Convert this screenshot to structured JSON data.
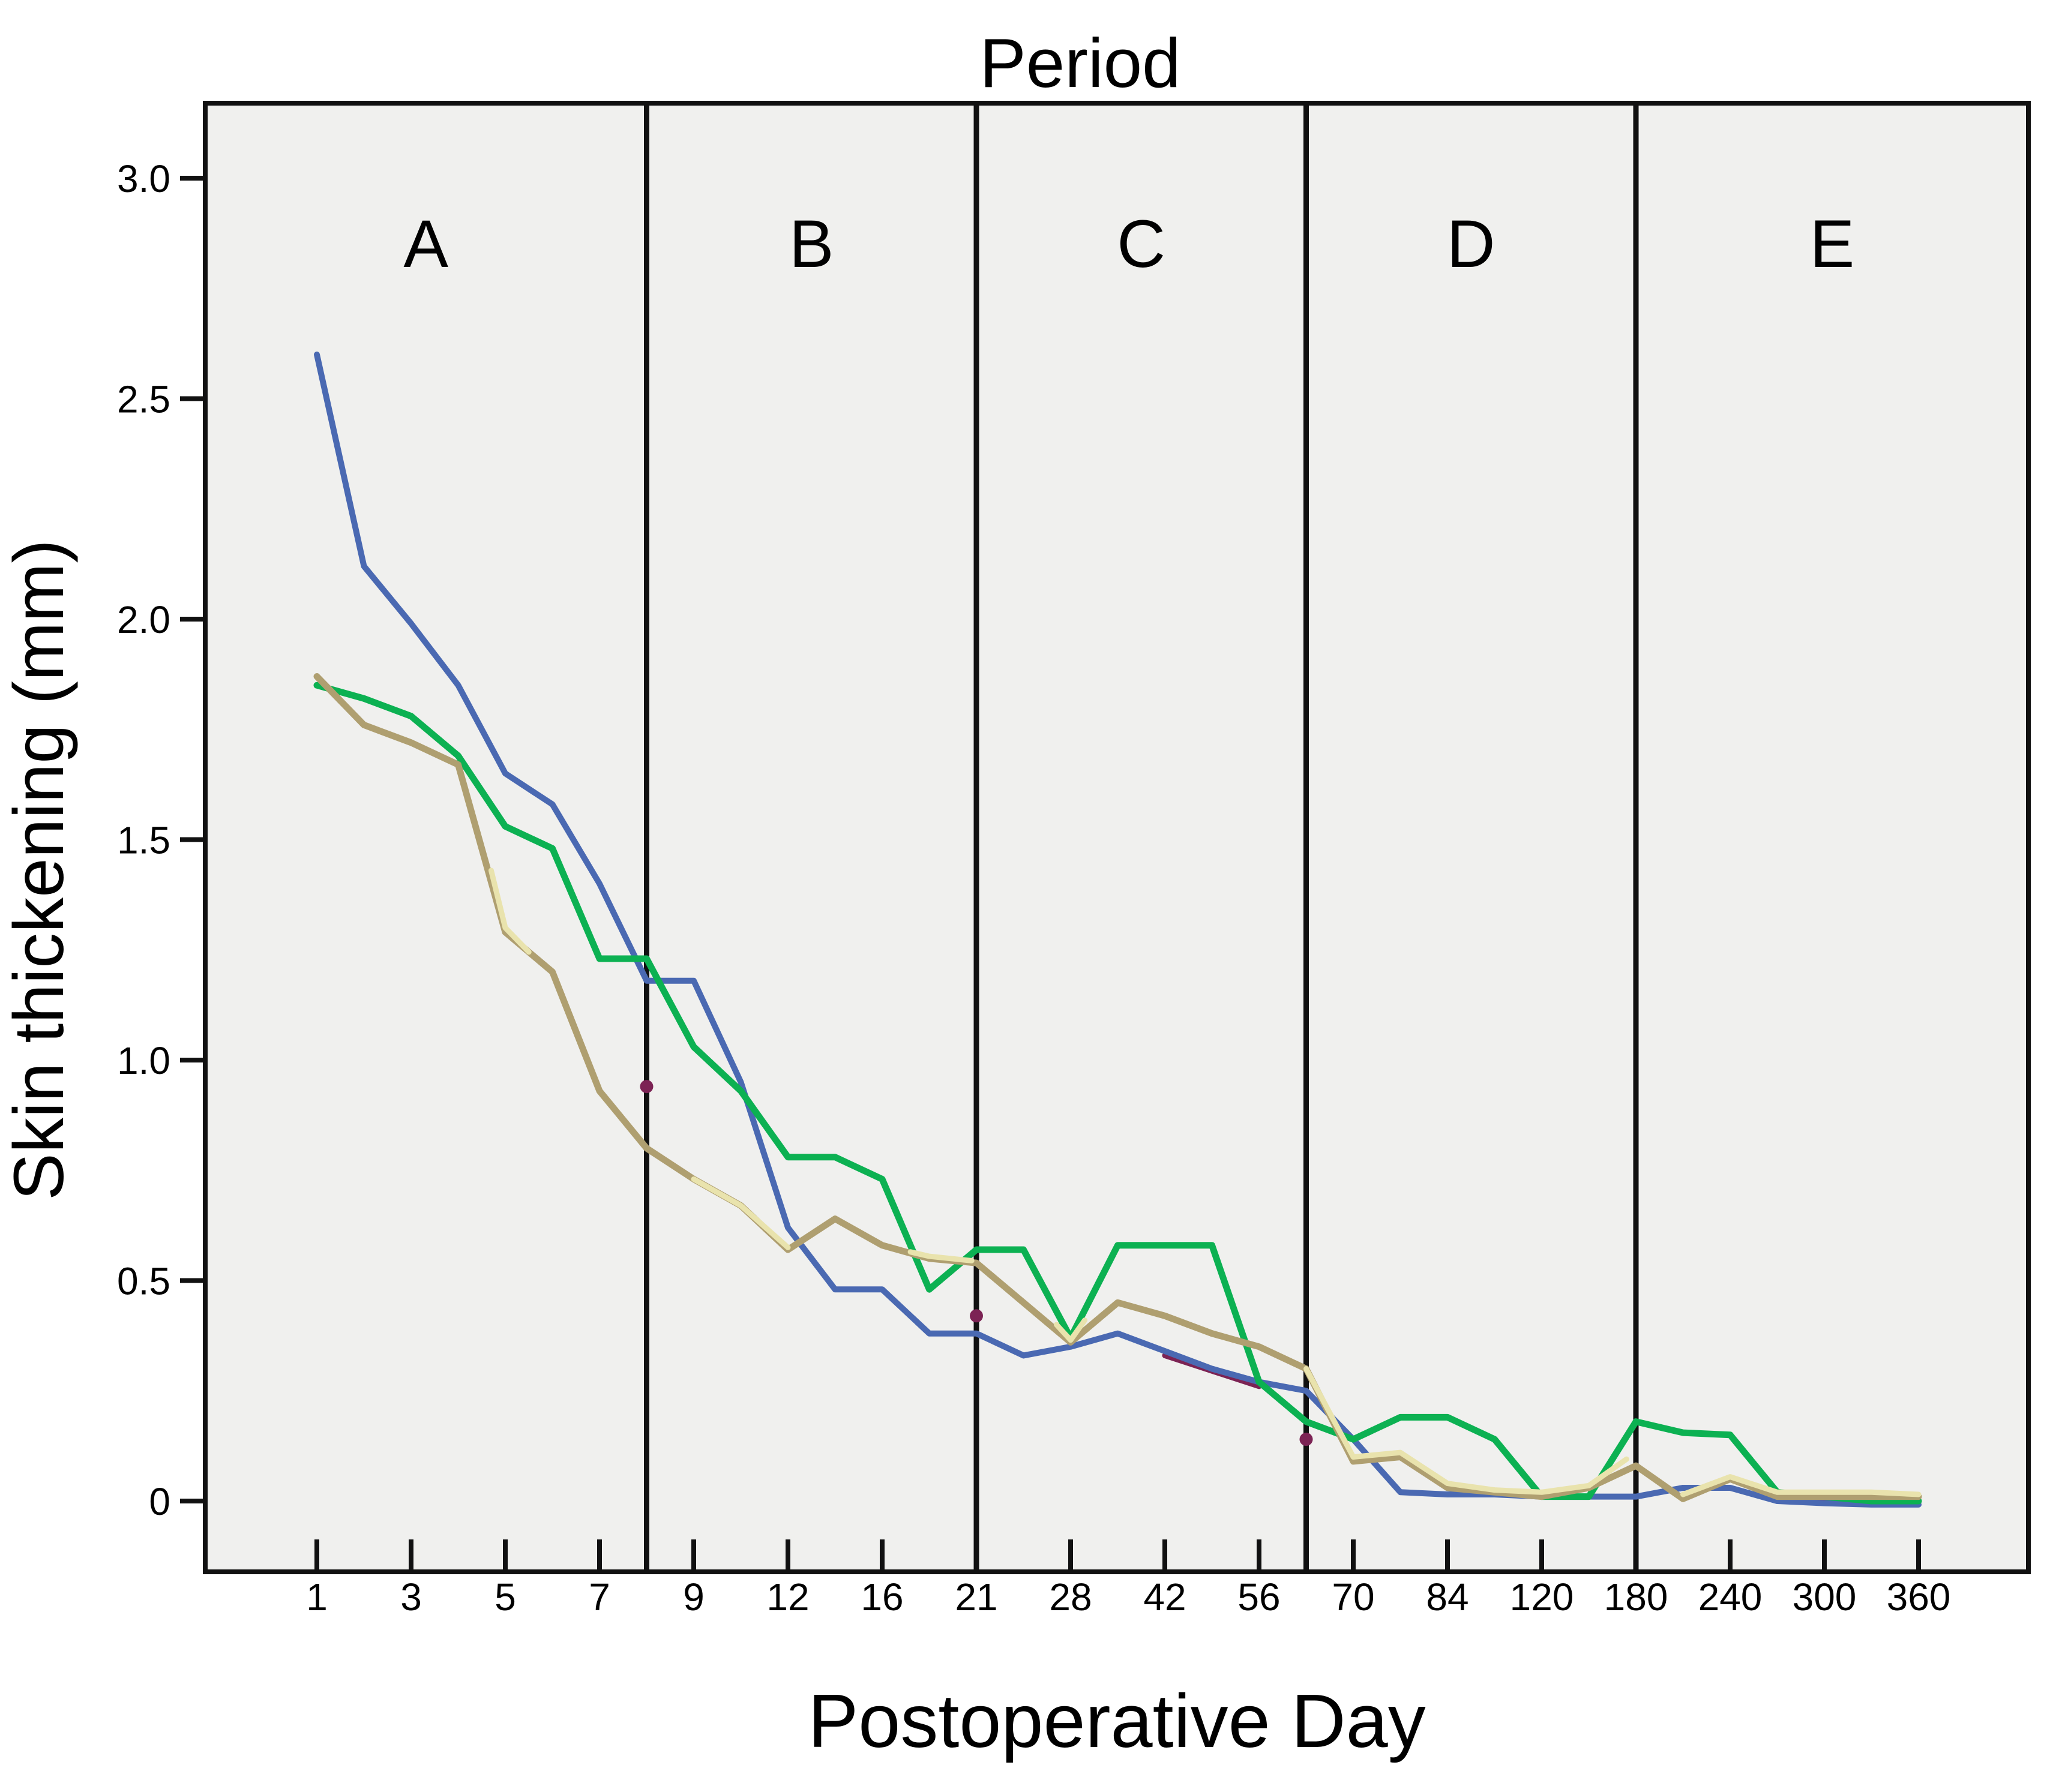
{
  "figure": {
    "title": "Period",
    "x_axis_label": "Postoperative Day",
    "y_axis_label": "Skin thickening (mm)"
  },
  "colors": {
    "figure_background": "#ffffff",
    "plot_background": "#f0f0ee",
    "axis_line": "#111111",
    "divider_line": "#111111",
    "series_blue": "#4a69b2",
    "series_green": "#0cb152",
    "series_tan": "#af9f70",
    "series_pale_yellow": "#e9e3ad",
    "series_maroon": "#7c2354"
  },
  "chart_data": {
    "type": "line",
    "title": "Period",
    "xlabel": "Postoperative Day",
    "ylabel": "Skin thickening (mm)",
    "x_scale": "ordinal (each measurement day equally spaced)",
    "grid": false,
    "legend_position": "none",
    "ylim": [
      -0.16,
      3.17
    ],
    "y_ticks": [
      0,
      0.5,
      1.0,
      1.5,
      2.0,
      2.5,
      3.0
    ],
    "y_tick_labels": [
      "0",
      "0.5",
      "1.0",
      "1.5",
      "2.0",
      "2.5",
      "3.0"
    ],
    "x_days": [
      1,
      2,
      3,
      4,
      5,
      6,
      7,
      8,
      9,
      10,
      12,
      14,
      16,
      18,
      21,
      24,
      28,
      35,
      42,
      49,
      56,
      63,
      70,
      77,
      84,
      100,
      120,
      150,
      180,
      210,
      240,
      270,
      300,
      330,
      360
    ],
    "x_tick_day_indices": [
      0,
      2,
      4,
      6,
      8,
      10,
      12,
      14,
      16,
      18,
      20,
      22,
      24,
      26,
      28,
      30,
      32,
      34
    ],
    "x_tick_labels": [
      "1",
      "3",
      "5",
      "7",
      "9",
      "12",
      "16",
      "21",
      "28",
      "42",
      "56",
      "70",
      "84",
      "120",
      "180",
      "240",
      "300",
      "360"
    ],
    "period_dividers_at_days": [
      8,
      21,
      63,
      180
    ],
    "period_labels": [
      {
        "label": "A",
        "day_range": "1-8"
      },
      {
        "label": "B",
        "day_range": "8-21"
      },
      {
        "label": "C",
        "day_range": "21-63"
      },
      {
        "label": "D",
        "day_range": "63-180"
      },
      {
        "label": "E",
        "day_range": "180-360"
      }
    ],
    "series": [
      {
        "name": "blue",
        "color": "#4a69b2",
        "stroke_width": 10,
        "values": [
          2.6,
          2.12,
          1.99,
          1.85,
          1.65,
          1.58,
          1.4,
          1.18,
          1.18,
          0.95,
          0.62,
          0.48,
          0.48,
          0.38,
          0.38,
          0.33,
          0.35,
          0.38,
          0.34,
          0.3,
          0.27,
          0.25,
          0.14,
          0.02,
          0.015,
          0.015,
          0.01,
          0.01,
          0.01,
          0.03,
          0.03,
          0.0,
          -0.005,
          -0.008,
          -0.008
        ]
      },
      {
        "name": "green",
        "color": "#0cb152",
        "stroke_width": 11,
        "values": [
          1.85,
          1.82,
          1.78,
          1.69,
          1.53,
          1.48,
          1.23,
          1.23,
          1.03,
          0.93,
          0.78,
          0.78,
          0.73,
          0.48,
          0.57,
          0.57,
          0.37,
          0.58,
          0.58,
          0.58,
          0.27,
          0.18,
          0.14,
          0.19,
          0.19,
          0.14,
          0.01,
          0.01,
          0.18,
          0.155,
          0.15,
          0.02,
          0.01,
          0.0,
          0.0
        ]
      },
      {
        "name": "tan",
        "color": "#af9f70",
        "stroke_width": 11,
        "values": [
          1.87,
          1.76,
          1.72,
          1.67,
          1.29,
          1.2,
          0.93,
          0.8,
          0.73,
          0.67,
          0.57,
          0.64,
          0.58,
          0.55,
          0.54,
          0.45,
          0.36,
          0.45,
          0.42,
          0.38,
          0.35,
          0.3,
          0.09,
          0.1,
          0.03,
          0.02,
          0.01,
          0.03,
          0.08,
          0.005,
          0.05,
          0.01,
          0.01,
          0.01,
          0.01
        ]
      },
      {
        "name": "pale-yellow",
        "color": "#e9e3ad",
        "stroke_width": 9,
        "note": "mostly hidden behind tan line; only short segments visible",
        "visible_segments": [
          [
            [
              3.7,
              1.43
            ],
            [
              4,
              1.3
            ],
            [
              4.5,
              1.245
            ]
          ],
          [
            [
              8,
              0.73
            ],
            [
              9,
              0.67
            ],
            [
              10,
              0.575
            ]
          ],
          [
            [
              12.6,
              0.565
            ],
            [
              13,
              0.555
            ],
            [
              13.9,
              0.545
            ]
          ],
          [
            [
              15.7,
              0.4
            ],
            [
              16,
              0.365
            ],
            [
              16.3,
              0.41
            ]
          ],
          [
            [
              21,
              0.3
            ],
            [
              22,
              0.1
            ],
            [
              23,
              0.11
            ],
            [
              24,
              0.04
            ],
            [
              25,
              0.025
            ],
            [
              26,
              0.02
            ],
            [
              27,
              0.035
            ],
            [
              27.8,
              0.095
            ]
          ],
          [
            [
              29,
              0.015
            ],
            [
              30,
              0.055
            ],
            [
              31,
              0.02
            ],
            [
              32,
              0.02
            ],
            [
              33,
              0.02
            ],
            [
              34,
              0.015
            ]
          ]
        ]
      },
      {
        "name": "maroon",
        "color": "#7c2354",
        "stroke_width": 9,
        "note": "mostly hidden behind other lines; visible only as small marks near dividers",
        "visible_marks": [
          [
            7,
            0.94
          ],
          [
            14,
            0.42
          ],
          [
            21,
            0.14
          ]
        ],
        "visible_segments": [
          [
            [
              18,
              0.33
            ],
            [
              19,
              0.295
            ],
            [
              20,
              0.26
            ]
          ],
          [
            [
              31.5,
              0.0
            ],
            [
              32.5,
              0.0
            ]
          ]
        ]
      }
    ]
  }
}
